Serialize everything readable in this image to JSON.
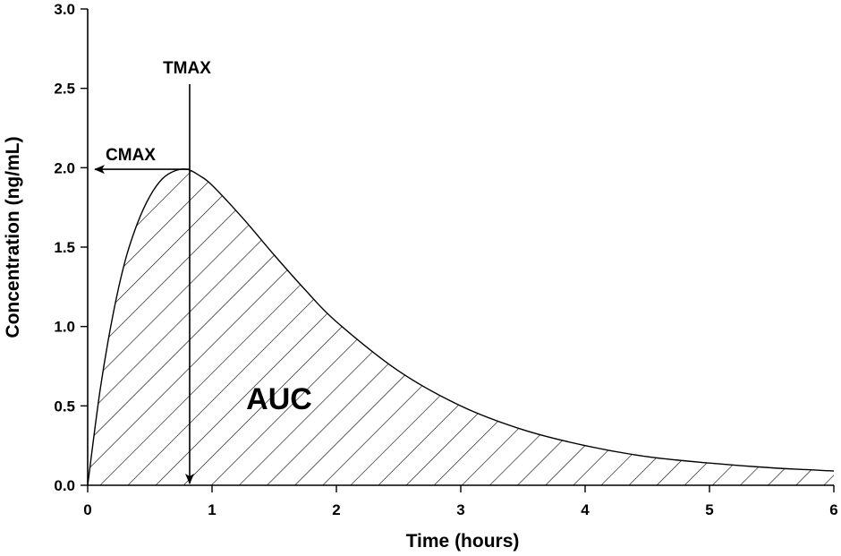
{
  "chart_data": {
    "type": "area",
    "title": "",
    "xlabel": "Time (hours)",
    "ylabel": "Concentration (ng/mL)",
    "xlim": [
      0,
      6
    ],
    "ylim": [
      0,
      3.0
    ],
    "x_ticks": [
      "0",
      "1",
      "2",
      "3",
      "4",
      "5",
      "6"
    ],
    "y_ticks": [
      "0.0",
      "0.5",
      "1.0",
      "1.5",
      "2.0",
      "2.5",
      "3.0"
    ],
    "grid": false,
    "fill": "diagonal-hatch",
    "series": [
      {
        "x": [
          0,
          0.1,
          0.2,
          0.3,
          0.4,
          0.5,
          0.6,
          0.7,
          0.8,
          0.9,
          1.0,
          1.25,
          1.5,
          1.75,
          2.0,
          2.5,
          3.0,
          3.5,
          4.0,
          4.5,
          5.0,
          5.5,
          6.0
        ],
        "y": [
          0,
          0.6,
          1.06,
          1.41,
          1.65,
          1.82,
          1.93,
          1.98,
          1.99,
          1.95,
          1.89,
          1.68,
          1.45,
          1.23,
          1.03,
          0.72,
          0.5,
          0.35,
          0.25,
          0.18,
          0.14,
          0.11,
          0.09
        ]
      }
    ],
    "annotations": {
      "tmax": {
        "label": "TMAX",
        "x": 0.82
      },
      "cmax": {
        "label": "CMAX",
        "y": 1.99
      },
      "auc": {
        "label": "AUC"
      }
    }
  }
}
